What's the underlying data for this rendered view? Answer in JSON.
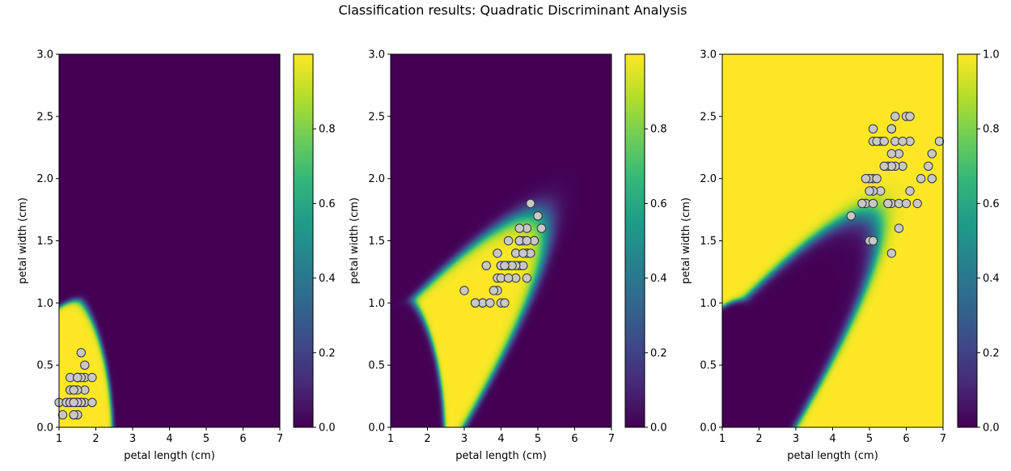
{
  "figure": {
    "title": "Classification results: Quadratic Discriminant Analysis"
  },
  "colors": {
    "viridis_low": "#440154",
    "viridis_mid": "#21918c",
    "viridis_high": "#fde725",
    "point_fill": "#c8c8c8",
    "point_edge": "#333333"
  },
  "chart_data": [
    {
      "type": "heatmap",
      "title": "",
      "xlabel": "petal length (cm)",
      "ylabel": "petal width (cm)",
      "xlim": [
        1,
        7
      ],
      "ylim": [
        0,
        3
      ],
      "xticks": [
        "1",
        "2",
        "3",
        "4",
        "5",
        "6",
        "7"
      ],
      "yticks": [
        "0.0",
        "0.5",
        "1.0",
        "1.5",
        "2.0",
        "2.5",
        "3.0"
      ],
      "colorbar": {
        "range": [
          0,
          1
        ],
        "ticks": [
          "0.0",
          "0.2",
          "0.4",
          "0.6",
          "0.8"
        ]
      },
      "class_index": 0,
      "points": [
        [
          1.4,
          0.2
        ],
        [
          1.4,
          0.2
        ],
        [
          1.3,
          0.2
        ],
        [
          1.5,
          0.2
        ],
        [
          1.4,
          0.2
        ],
        [
          1.7,
          0.4
        ],
        [
          1.4,
          0.3
        ],
        [
          1.5,
          0.2
        ],
        [
          1.4,
          0.2
        ],
        [
          1.5,
          0.1
        ],
        [
          1.5,
          0.2
        ],
        [
          1.6,
          0.2
        ],
        [
          1.4,
          0.1
        ],
        [
          1.1,
          0.1
        ],
        [
          1.2,
          0.2
        ],
        [
          1.5,
          0.4
        ],
        [
          1.3,
          0.4
        ],
        [
          1.4,
          0.3
        ],
        [
          1.7,
          0.3
        ],
        [
          1.5,
          0.3
        ],
        [
          1.7,
          0.2
        ],
        [
          1.5,
          0.4
        ],
        [
          1.0,
          0.2
        ],
        [
          1.7,
          0.5
        ],
        [
          1.9,
          0.2
        ],
        [
          1.6,
          0.2
        ],
        [
          1.6,
          0.4
        ],
        [
          1.5,
          0.2
        ],
        [
          1.4,
          0.2
        ],
        [
          1.6,
          0.2
        ],
        [
          1.6,
          0.2
        ],
        [
          1.5,
          0.4
        ],
        [
          1.5,
          0.1
        ],
        [
          1.4,
          0.2
        ],
        [
          1.5,
          0.2
        ],
        [
          1.2,
          0.2
        ],
        [
          1.3,
          0.2
        ],
        [
          1.4,
          0.1
        ],
        [
          1.3,
          0.2
        ],
        [
          1.5,
          0.2
        ],
        [
          1.3,
          0.3
        ],
        [
          1.3,
          0.3
        ],
        [
          1.3,
          0.2
        ],
        [
          1.6,
          0.6
        ],
        [
          1.9,
          0.4
        ],
        [
          1.4,
          0.3
        ],
        [
          1.6,
          0.2
        ],
        [
          1.4,
          0.2
        ],
        [
          1.5,
          0.2
        ],
        [
          1.4,
          0.2
        ]
      ]
    },
    {
      "type": "heatmap",
      "title": "",
      "xlabel": "petal length (cm)",
      "ylabel": "petal width (cm)",
      "xlim": [
        1,
        7
      ],
      "ylim": [
        0,
        3
      ],
      "xticks": [
        "1",
        "2",
        "3",
        "4",
        "5",
        "6",
        "7"
      ],
      "yticks": [
        "0.0",
        "0.5",
        "1.0",
        "1.5",
        "2.0",
        "2.5",
        "3.0"
      ],
      "colorbar": {
        "range": [
          0,
          1
        ],
        "ticks": [
          "0.0",
          "0.2",
          "0.4",
          "0.6",
          "0.8"
        ]
      },
      "class_index": 1,
      "points": [
        [
          4.7,
          1.4
        ],
        [
          4.5,
          1.5
        ],
        [
          4.9,
          1.5
        ],
        [
          4.0,
          1.3
        ],
        [
          4.6,
          1.5
        ],
        [
          4.5,
          1.3
        ],
        [
          4.7,
          1.6
        ],
        [
          3.3,
          1.0
        ],
        [
          4.6,
          1.3
        ],
        [
          3.9,
          1.4
        ],
        [
          3.5,
          1.0
        ],
        [
          4.2,
          1.5
        ],
        [
          4.0,
          1.0
        ],
        [
          4.7,
          1.4
        ],
        [
          3.6,
          1.3
        ],
        [
          4.4,
          1.4
        ],
        [
          4.5,
          1.5
        ],
        [
          4.1,
          1.0
        ],
        [
          4.5,
          1.5
        ],
        [
          3.9,
          1.1
        ],
        [
          4.8,
          1.8
        ],
        [
          4.0,
          1.3
        ],
        [
          4.9,
          1.5
        ],
        [
          4.7,
          1.2
        ],
        [
          4.3,
          1.3
        ],
        [
          4.4,
          1.4
        ],
        [
          4.8,
          1.4
        ],
        [
          5.0,
          1.7
        ],
        [
          4.5,
          1.5
        ],
        [
          3.5,
          1.0
        ],
        [
          3.8,
          1.1
        ],
        [
          3.7,
          1.0
        ],
        [
          3.9,
          1.2
        ],
        [
          5.1,
          1.6
        ],
        [
          4.5,
          1.5
        ],
        [
          4.5,
          1.6
        ],
        [
          4.7,
          1.5
        ],
        [
          4.4,
          1.3
        ],
        [
          4.1,
          1.3
        ],
        [
          4.0,
          1.3
        ],
        [
          4.4,
          1.2
        ],
        [
          4.6,
          1.4
        ],
        [
          4.0,
          1.2
        ],
        [
          3.3,
          1.0
        ],
        [
          4.2,
          1.3
        ],
        [
          4.2,
          1.2
        ],
        [
          4.2,
          1.3
        ],
        [
          4.3,
          1.3
        ],
        [
          3.0,
          1.1
        ],
        [
          4.1,
          1.3
        ]
      ]
    },
    {
      "type": "heatmap",
      "title": "",
      "xlabel": "petal length (cm)",
      "ylabel": "petal width (cm)",
      "xlim": [
        1,
        7
      ],
      "ylim": [
        0,
        3
      ],
      "xticks": [
        "1",
        "2",
        "3",
        "4",
        "5",
        "6",
        "7"
      ],
      "yticks": [
        "0.0",
        "0.5",
        "1.0",
        "1.5",
        "2.0",
        "2.5",
        "3.0"
      ],
      "colorbar": {
        "range": [
          0,
          1
        ],
        "ticks": [
          "0.0",
          "0.2",
          "0.4",
          "0.6",
          "0.8",
          "1.0"
        ]
      },
      "class_index": 2,
      "points": [
        [
          6.0,
          2.5
        ],
        [
          5.1,
          1.9
        ],
        [
          5.9,
          2.1
        ],
        [
          5.6,
          1.8
        ],
        [
          5.8,
          2.2
        ],
        [
          6.6,
          2.1
        ],
        [
          4.5,
          1.7
        ],
        [
          6.3,
          1.8
        ],
        [
          5.8,
          1.8
        ],
        [
          6.1,
          2.5
        ],
        [
          5.1,
          2.0
        ],
        [
          5.3,
          1.9
        ],
        [
          5.5,
          2.1
        ],
        [
          5.0,
          2.0
        ],
        [
          5.1,
          2.4
        ],
        [
          5.3,
          2.3
        ],
        [
          5.5,
          1.8
        ],
        [
          6.7,
          2.2
        ],
        [
          6.9,
          2.3
        ],
        [
          5.0,
          1.5
        ],
        [
          5.7,
          2.3
        ],
        [
          4.9,
          2.0
        ],
        [
          6.7,
          2.0
        ],
        [
          4.9,
          1.8
        ],
        [
          5.7,
          2.1
        ],
        [
          6.0,
          1.8
        ],
        [
          4.8,
          1.8
        ],
        [
          4.9,
          1.8
        ],
        [
          5.6,
          2.1
        ],
        [
          5.8,
          1.6
        ],
        [
          6.1,
          1.9
        ],
        [
          6.4,
          2.0
        ],
        [
          5.6,
          2.2
        ],
        [
          5.1,
          1.5
        ],
        [
          5.6,
          1.4
        ],
        [
          6.1,
          2.3
        ],
        [
          5.6,
          2.4
        ],
        [
          5.5,
          1.8
        ],
        [
          4.8,
          1.8
        ],
        [
          5.4,
          2.1
        ],
        [
          5.6,
          2.4
        ],
        [
          5.1,
          2.3
        ],
        [
          5.1,
          1.9
        ],
        [
          5.9,
          2.3
        ],
        [
          5.7,
          2.5
        ],
        [
          5.2,
          2.3
        ],
        [
          5.0,
          1.9
        ],
        [
          5.2,
          2.0
        ],
        [
          5.4,
          2.3
        ],
        [
          5.1,
          1.8
        ]
      ]
    }
  ]
}
